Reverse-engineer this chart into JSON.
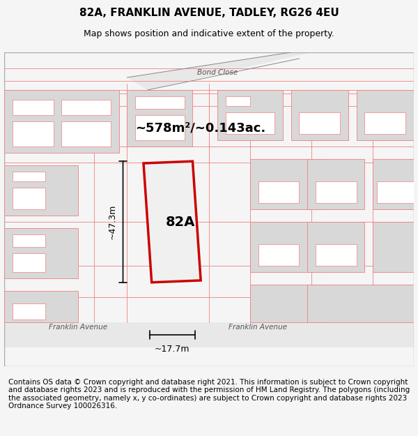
{
  "title": "82A, FRANKLIN AVENUE, TADLEY, RG26 4EU",
  "subtitle": "Map shows position and indicative extent of the property.",
  "area_text": "~578m²/~0.143ac.",
  "label_82A": "82A",
  "dim_width": "~17.7m",
  "dim_height": "~47.3m",
  "road_bond_close": "Bond Close",
  "road_franklin_avenue_left": "Franklin Avenue",
  "road_franklin_avenue_right": "Franklin Avenue",
  "footer": "Contains OS data © Crown copyright and database right 2021. This information is subject to Crown copyright and database rights 2023 and is reproduced with the permission of HM Land Registry. The polygons (including the associated geometry, namely x, y co-ordinates) are subject to Crown copyright and database rights 2023 Ordnance Survey 100026316.",
  "bg_color": "#f5f5f5",
  "map_bg": "#ffffff",
  "plot_color_fill": "#e8e8e8",
  "plot_color_border": "#cc0000",
  "building_fill": "#d8d8d8",
  "road_color": "#e0e0e0",
  "pink_line_color": "#f08080",
  "dark_line_color": "#888888",
  "footer_fontsize": 7.5,
  "title_fontsize": 11,
  "subtitle_fontsize": 9
}
